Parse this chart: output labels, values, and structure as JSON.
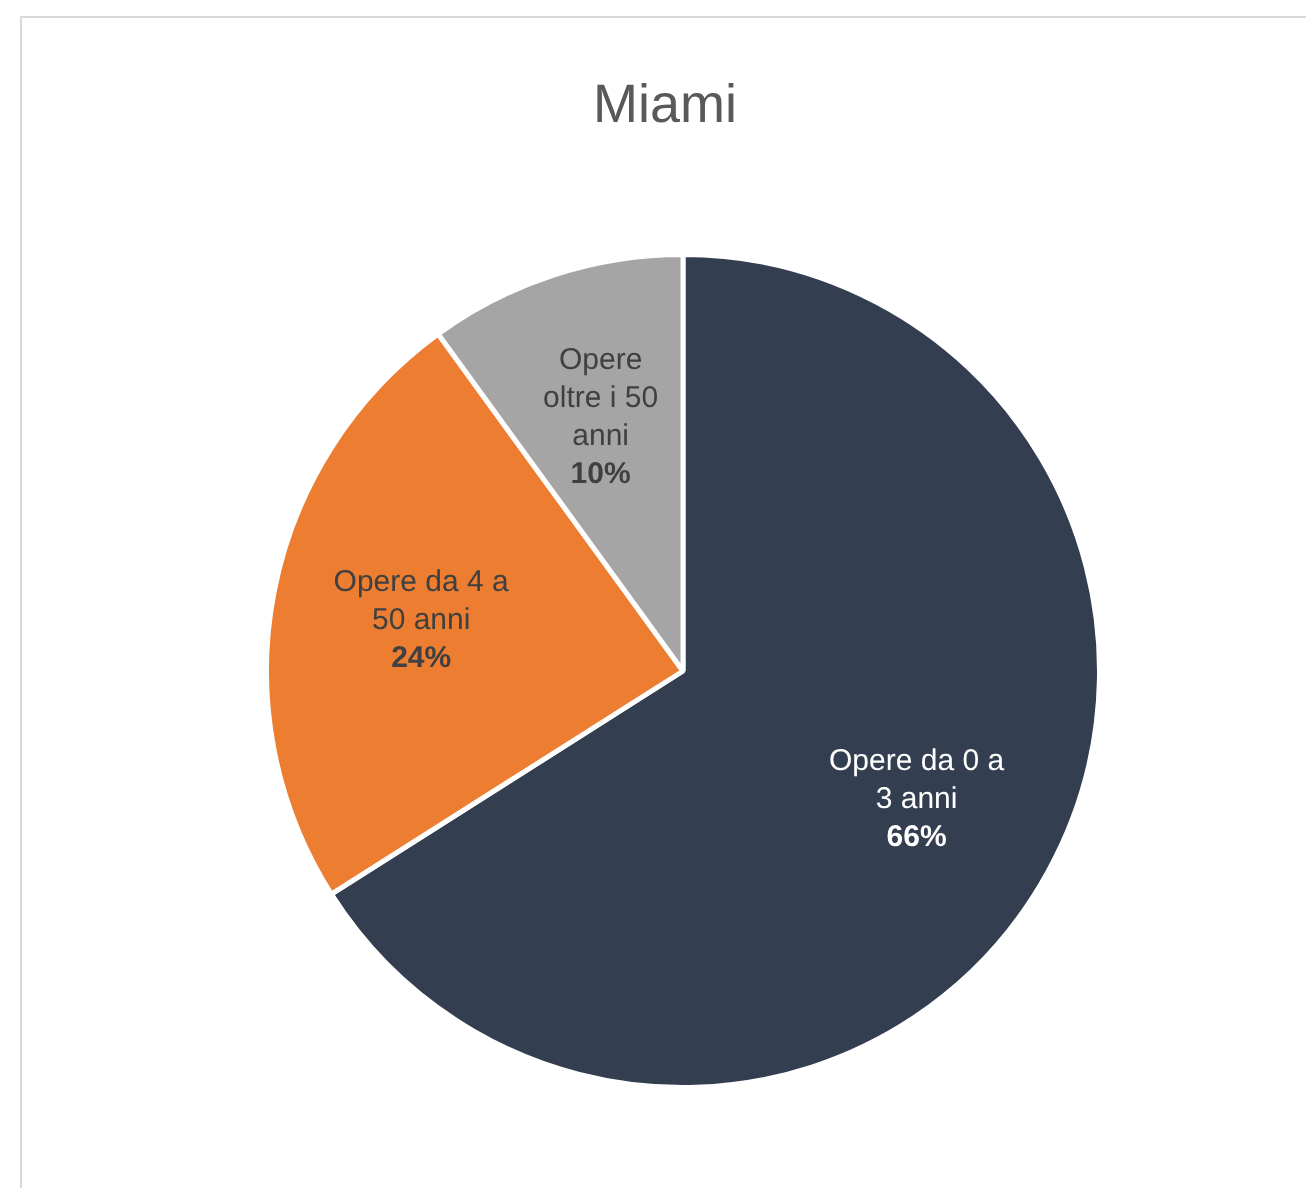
{
  "chart_data": {
    "type": "pie",
    "title": "Miami",
    "categories": [
      "Opere da 0 a 3 anni",
      "Opere da 4 a 50 anni",
      "Opere oltre i 50 anni"
    ],
    "values": [
      66,
      24,
      10
    ],
    "colors": [
      "#333e50",
      "#ed7d31",
      "#a5a5a5"
    ],
    "value_labels": [
      "66%",
      "24%",
      "10%"
    ],
    "legend": false
  }
}
